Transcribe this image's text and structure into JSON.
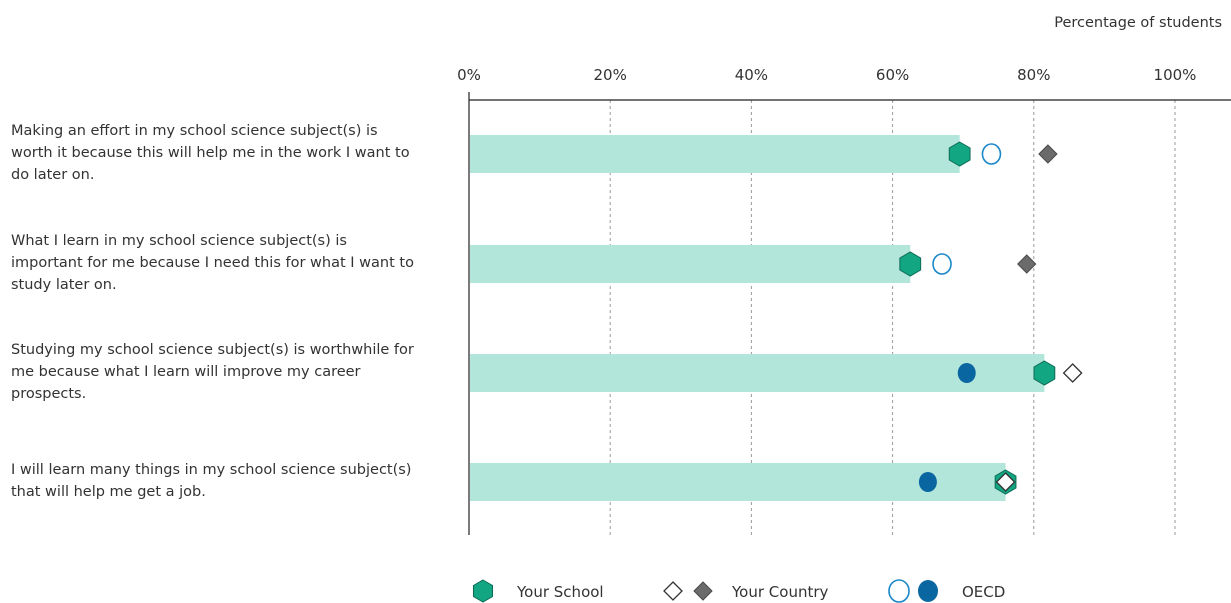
{
  "chart_data": {
    "type": "dot-bar",
    "unit_label": "Percentage of students",
    "xlim": [
      0,
      100
    ],
    "x_ticks": [
      0,
      20,
      40,
      60,
      80,
      100
    ],
    "x_tick_labels": [
      "0%",
      "20%",
      "40%",
      "60%",
      "80%",
      "100%"
    ],
    "grid": true,
    "legend_position": "bottom",
    "categories": [
      [
        "Making an effort in my school science subject(s) is",
        "worth it because this will help me in the work I want to",
        "do later on."
      ],
      [
        "What I learn in my school science subject(s) is",
        "important for me because I need this for what I want to",
        "study later on."
      ],
      [
        "Studying my school science subject(s) is worthwhile for",
        "me because what I learn will improve my career",
        "prospects."
      ],
      [
        "I will learn many things in my school science subject(s)",
        "that will help me get a job."
      ]
    ],
    "series": [
      {
        "name": "Your School",
        "values": [
          69.5,
          62.5,
          81.5,
          76
        ],
        "color": "#13a683",
        "marker": "hexagon",
        "bar_color": "#b2e6da"
      },
      {
        "name": "Your Country",
        "values": [
          82,
          79,
          85.5,
          76
        ],
        "filled": [
          true,
          true,
          false,
          false
        ],
        "color": "#6b6b6b",
        "marker": "diamond"
      },
      {
        "name": "OECD",
        "values": [
          74,
          67,
          70.5,
          65
        ],
        "filled": [
          false,
          false,
          true,
          true
        ],
        "color": "#0a66a0",
        "marker": "circle"
      }
    ]
  }
}
